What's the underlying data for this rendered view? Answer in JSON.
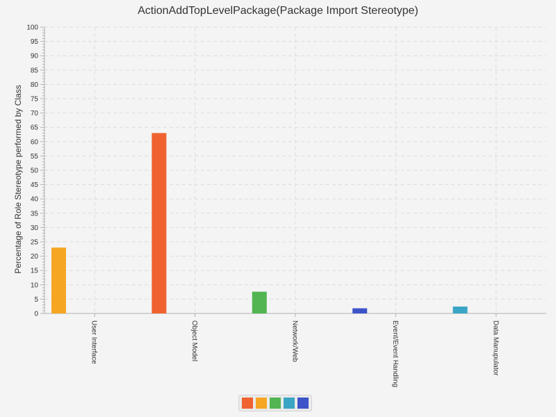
{
  "chart_data": {
    "type": "bar",
    "title": "ActionAddTopLevelPackage(Package Import Stereotype)",
    "xlabel": "",
    "ylabel": "Percentage of Role Stereotype performed by Class",
    "ylim": [
      0,
      100
    ],
    "y_major_step": 5,
    "y_minor_step": 1,
    "grid": true,
    "legend_position": "bottom-center",
    "categories": [
      "User Interface",
      "Object Model",
      "Network/Web",
      "Event/Event Handling",
      "Data Manupulator"
    ],
    "values": [
      23.0,
      63.0,
      7.6,
      1.8,
      2.4
    ],
    "colors": [
      "#f5a623",
      "#f0622f",
      "#52b551",
      "#3c54c8",
      "#3aa5c4"
    ],
    "legend_colors": [
      "#f0622f",
      "#f5a623",
      "#52b551",
      "#3aa5c4",
      "#3c54c8"
    ]
  }
}
